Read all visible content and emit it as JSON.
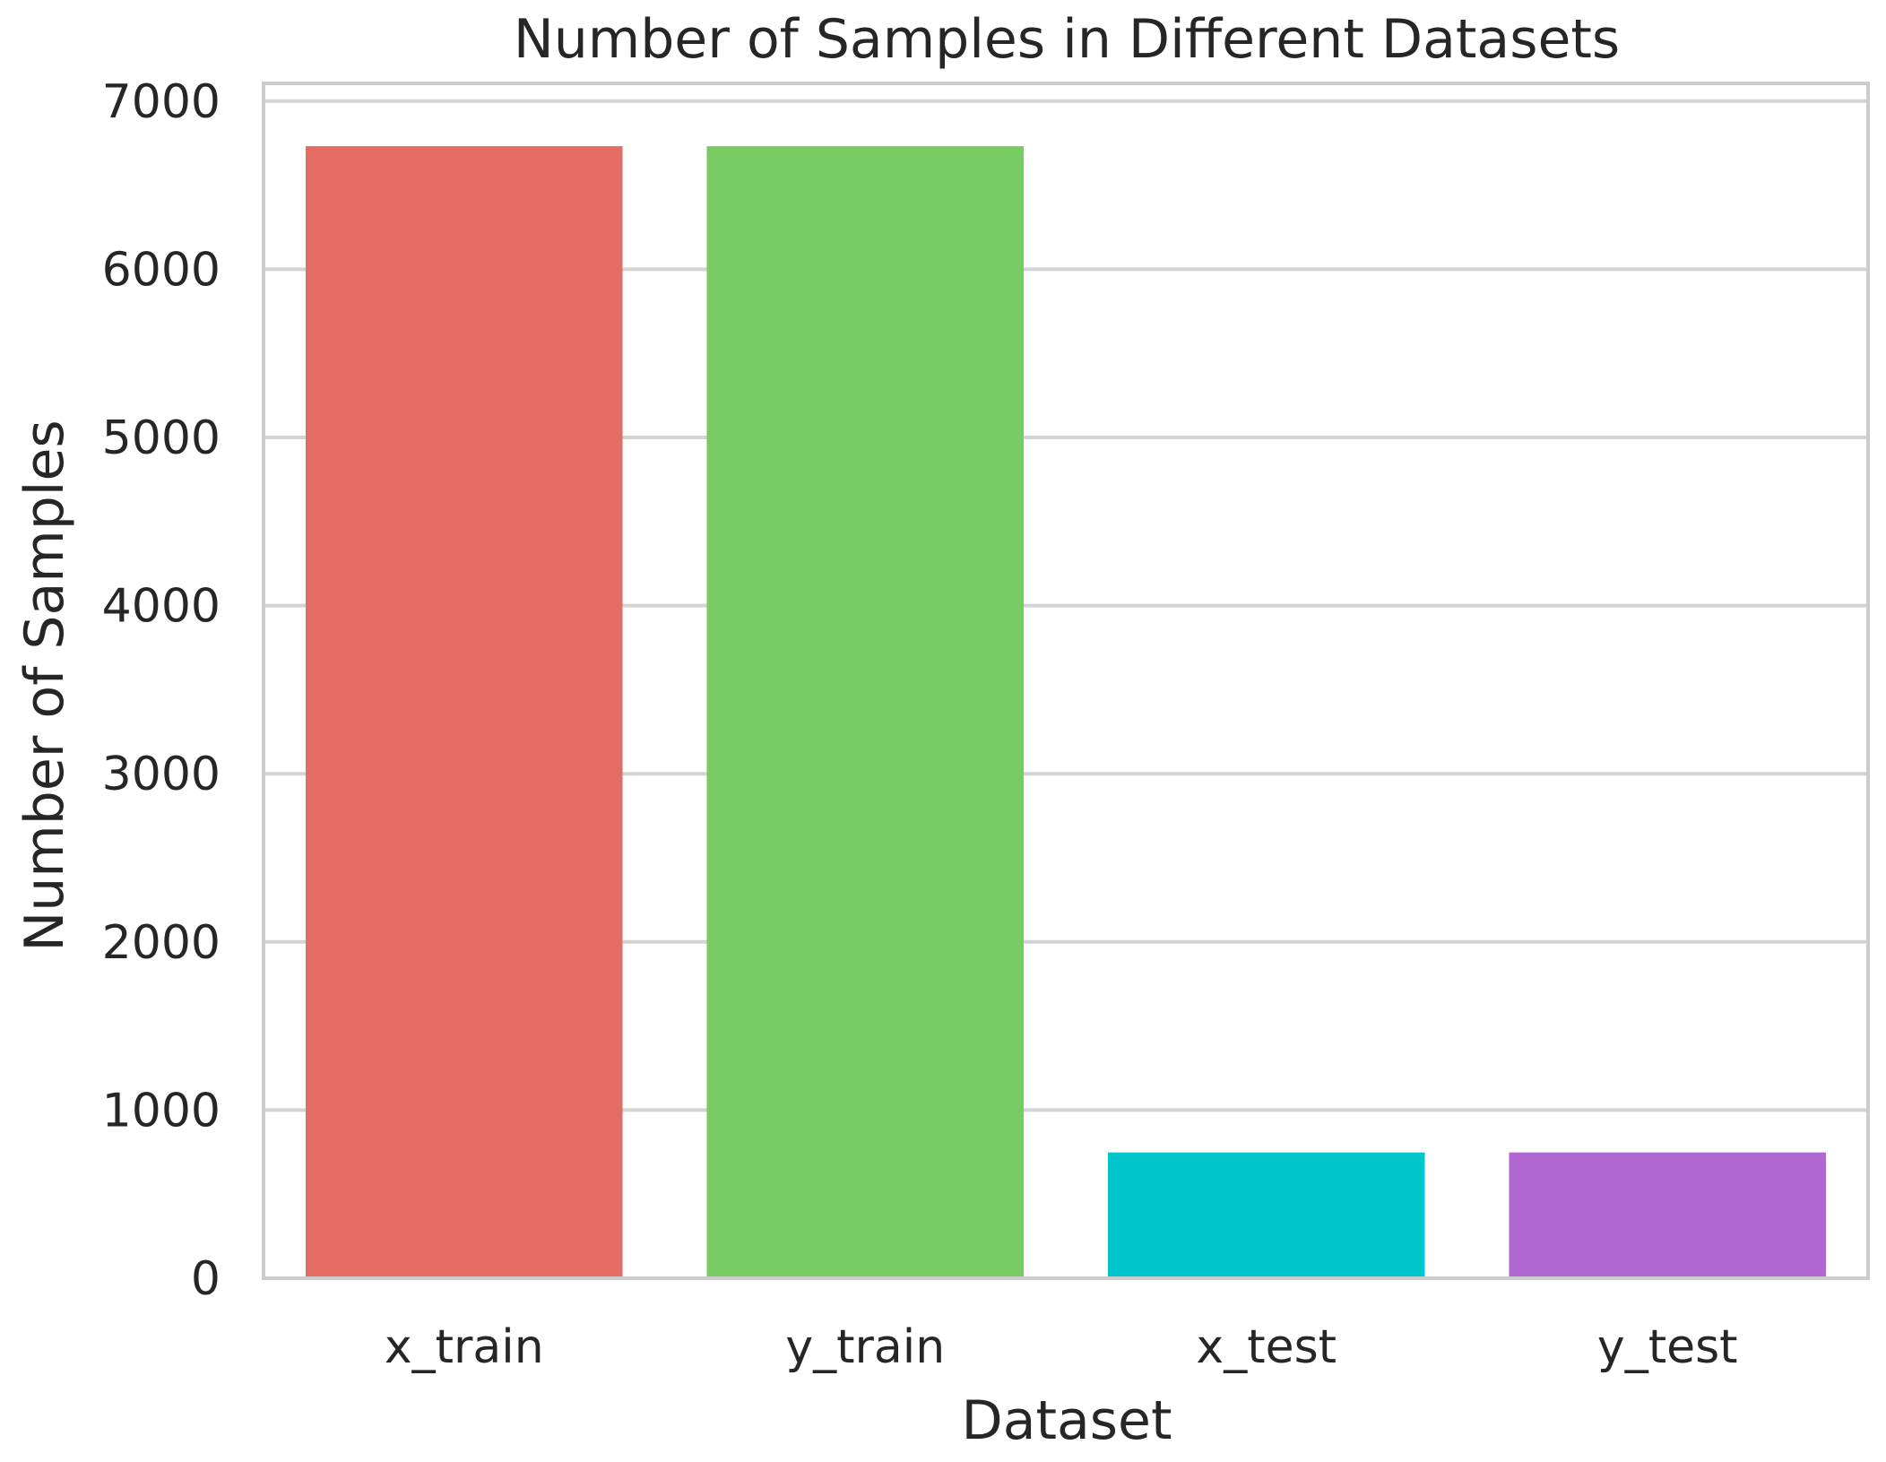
{
  "chart_data": {
    "type": "bar",
    "title": "Number of Samples in Different Datasets",
    "xlabel": "Dataset",
    "ylabel": "Number of Samples",
    "categories": [
      "x_train",
      "y_train",
      "x_test",
      "y_test"
    ],
    "values": [
      6732,
      6732,
      748,
      748
    ],
    "colors": [
      "#e36c63",
      "#77cb62",
      "#00c6cc",
      "#b067d1"
    ],
    "ylim": [
      0,
      7000
    ],
    "yticks": [
      0,
      1000,
      2000,
      3000,
      4000,
      5000,
      6000,
      7000
    ],
    "ytick_labels": [
      "0",
      "1000",
      "2000",
      "3000",
      "4000",
      "5000",
      "6000",
      "7000"
    ],
    "grid": true,
    "grid_color": "#d3d3d3",
    "frame_color": "#cccccc",
    "legend": "none"
  }
}
